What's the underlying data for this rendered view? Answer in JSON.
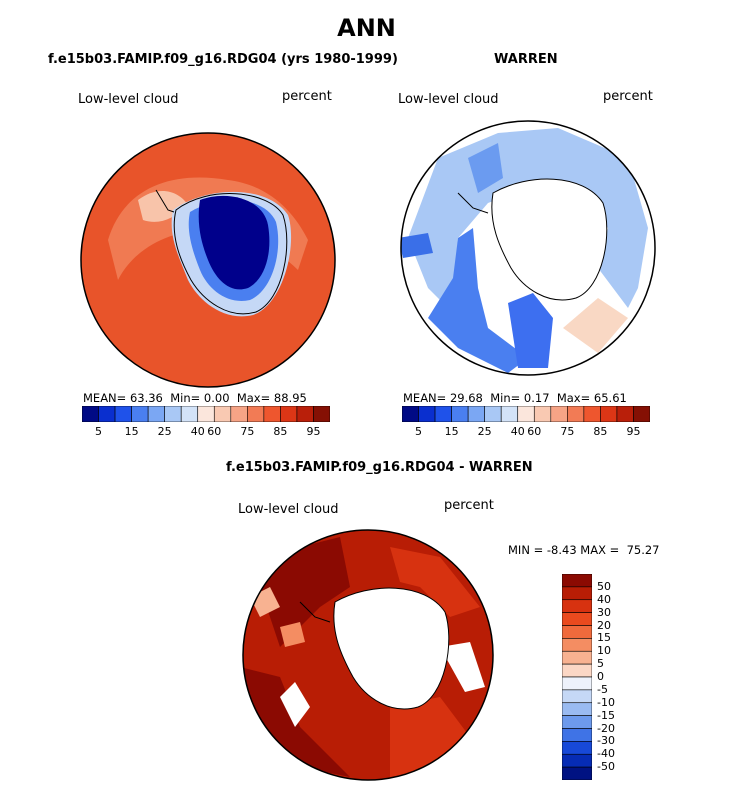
{
  "title": "ANN",
  "colors": {
    "ocean_warm": "#e8542a",
    "ice_deep": "#00008b",
    "coast": "#000000"
  },
  "chart_data": [
    {
      "type": "heatmap",
      "projection": "south-polar-stereographic",
      "title": "f.e15b03.FAMIP.f09_g16.RDG04 (yrs 1980-1999)",
      "variable": "Low-level cloud",
      "units": "percent",
      "stats": {
        "mean_label": "MEAN=",
        "mean": "63.36",
        "min_label": "Min=",
        "min": "0.00",
        "max_label": "Max=",
        "max": "88.95"
      },
      "colorbar": {
        "ticks": [
          "5",
          "15",
          "25",
          "40",
          "60",
          "75",
          "85",
          "95"
        ],
        "colors": [
          "#000a85",
          "#0a2fcf",
          "#1f52ea",
          "#4a7ff0",
          "#7ba7f3",
          "#a9c8f5",
          "#d3e3f8",
          "#fbe6dc",
          "#f9c9b2",
          "#f6a486",
          "#f27b55",
          "#ee562e",
          "#dc3616",
          "#b91f0a",
          "#851004"
        ]
      }
    },
    {
      "type": "heatmap",
      "projection": "south-polar-stereographic",
      "title": "WARREN",
      "variable": "Low-level cloud",
      "units": "percent",
      "stats": {
        "mean_label": "MEAN=",
        "mean": "29.68",
        "min_label": "Min=",
        "min": "0.17",
        "max_label": "Max=",
        "max": "65.61"
      },
      "colorbar": {
        "ticks": [
          "5",
          "15",
          "25",
          "40",
          "60",
          "75",
          "85",
          "95"
        ],
        "colors": [
          "#000a85",
          "#0a2fcf",
          "#1f52ea",
          "#4a7ff0",
          "#7ba7f3",
          "#a9c8f5",
          "#d3e3f8",
          "#fbe6dc",
          "#f9c9b2",
          "#f6a486",
          "#f27b55",
          "#ee562e",
          "#dc3616",
          "#b91f0a",
          "#851004"
        ]
      }
    },
    {
      "type": "heatmap",
      "projection": "south-polar-stereographic",
      "title": "f.e15b03.FAMIP.f09_g16.RDG04 - WARREN",
      "variable": "Low-level cloud",
      "units": "percent",
      "stats": {
        "min_label": "MIN =",
        "min": "-8.43",
        "max_label": "MAX =",
        "max": "75.27"
      },
      "colorbar": {
        "ticks": [
          "50",
          "40",
          "30",
          "20",
          "15",
          "10",
          "5",
          "0",
          "-5",
          "-10",
          "-15",
          "-20",
          "-30",
          "-40",
          "-50"
        ],
        "colors": [
          "#8b0a02",
          "#b81d05",
          "#d73210",
          "#ea4a1e",
          "#f06a3c",
          "#f48d62",
          "#f8b291",
          "#fbd7c5",
          "#eef2fb",
          "#c5d8f6",
          "#9abbf1",
          "#6d9aec",
          "#3f73e6",
          "#1749d8",
          "#062cb5",
          "#001282"
        ]
      }
    }
  ]
}
